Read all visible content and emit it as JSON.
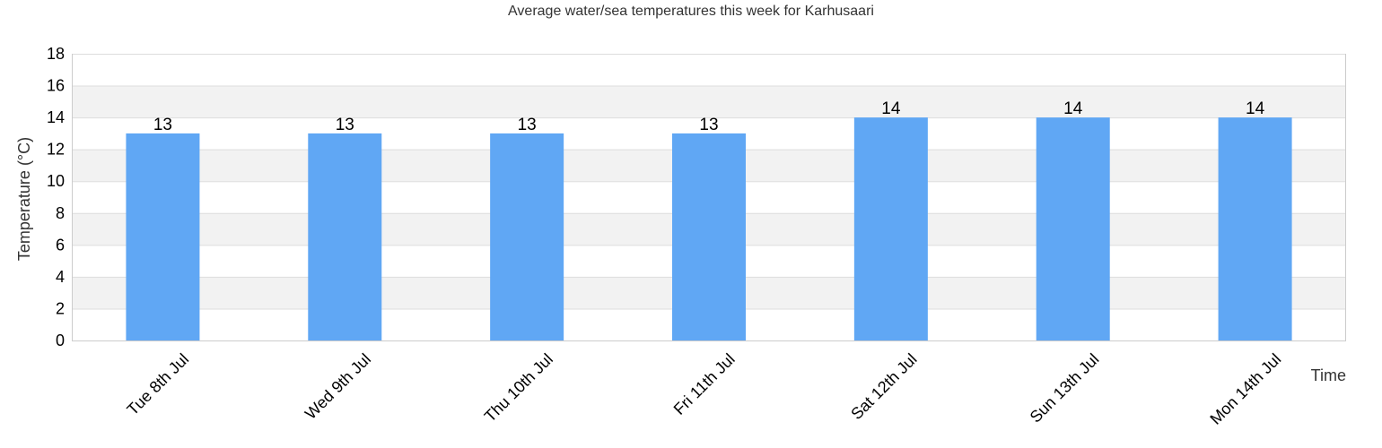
{
  "colors": {
    "bar": "#60a7f4",
    "band_alt": "#f2f2f2",
    "band_base": "#ffffff",
    "grid": "#dddddd",
    "axis": "#cccccc"
  },
  "chart_data": {
    "type": "bar",
    "title": "Average water/sea temperatures this week for Karhusaari",
    "xlabel": "Time",
    "ylabel": "Temperature (°C)",
    "categories": [
      "Tue 8th Jul",
      "Wed 9th Jul",
      "Thu 10th Jul",
      "Fri 11th Jul",
      "Sat 12th Jul",
      "Sun 13th Jul",
      "Mon 14th Jul"
    ],
    "values": [
      13,
      13,
      13,
      13,
      14,
      14,
      14
    ],
    "value_labels": [
      "13",
      "13",
      "13",
      "13",
      "14",
      "14",
      "14"
    ],
    "ylim": [
      0,
      18
    ],
    "yticks": [
      0,
      2,
      4,
      6,
      8,
      10,
      12,
      14,
      16,
      18
    ],
    "ytick_labels": [
      "0",
      "2",
      "4",
      "6",
      "8",
      "10",
      "12",
      "14",
      "16",
      "18"
    ],
    "grid": true,
    "alternating_bands": true,
    "legend": "none"
  }
}
